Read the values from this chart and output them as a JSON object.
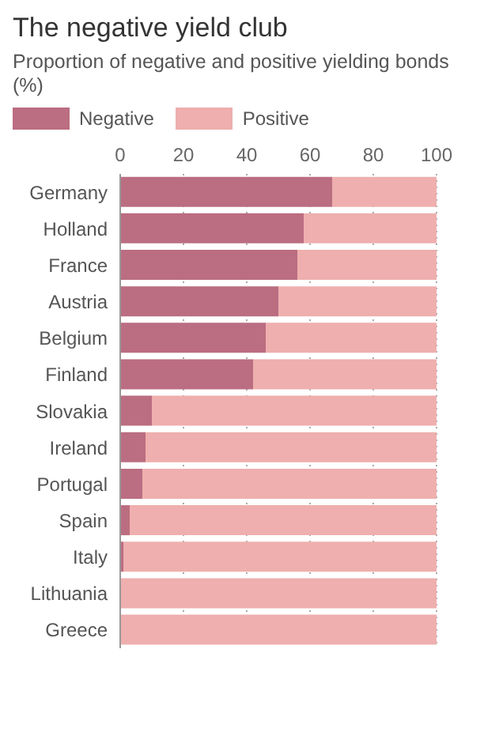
{
  "chart_data": {
    "type": "bar",
    "title": "The negative yield club",
    "subtitle": "Proportion of negative and positive yielding bonds (%)",
    "orientation": "horizontal",
    "stacked": true,
    "categories": [
      "Germany",
      "Holland",
      "France",
      "Austria",
      "Belgium",
      "Finland",
      "Slovakia",
      "Ireland",
      "Portugal",
      "Spain",
      "Italy",
      "Lithuania",
      "Greece"
    ],
    "series": [
      {
        "name": "Negative",
        "color": "#bb6d81",
        "values": [
          67,
          58,
          56,
          50,
          46,
          42,
          10,
          8,
          7,
          3,
          1,
          0,
          0
        ]
      },
      {
        "name": "Positive",
        "color": "#eeafae",
        "values": [
          33,
          42,
          44,
          50,
          54,
          58,
          90,
          92,
          93,
          97,
          99,
          100,
          100
        ]
      }
    ],
    "xlim": [
      0,
      100
    ],
    "xticks": [
      0,
      20,
      40,
      60,
      80,
      100
    ],
    "grid": "x",
    "legend": "top left"
  }
}
